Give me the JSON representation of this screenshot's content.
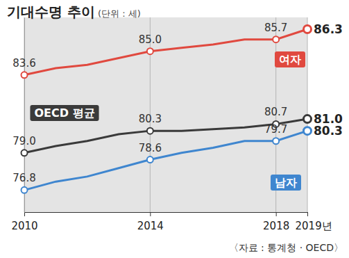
{
  "chart_data": {
    "type": "line",
    "title": "기대수명 추이",
    "subtitle": "(단위 : 세)",
    "source": "〈자료 : 통계청 · OECD〉",
    "x": [
      2010,
      2011,
      2012,
      2013,
      2014,
      2015,
      2016,
      2017,
      2018,
      2019
    ],
    "xlim": [
      2010,
      2019
    ],
    "xticks": [
      2010,
      2014,
      2018,
      {
        "value": 2019,
        "label": "2019년"
      }
    ],
    "ylim": [
      75.5,
      87
    ],
    "yticks": [],
    "tick_labels": "x",
    "grid": true,
    "data_labels": true,
    "marker": "circle",
    "series": [
      {
        "name": "여자",
        "color": "#e0493f",
        "values": [
          83.6,
          84.0,
          84.2,
          84.6,
          85.0,
          85.2,
          85.4,
          85.7,
          85.7,
          86.3
        ],
        "value_labels": [
          "83.6",
          null,
          null,
          null,
          "85.0",
          null,
          null,
          null,
          "85.7",
          "86.3"
        ]
      },
      {
        "name": "OECD 평균",
        "color": "#3a3a3a",
        "values": [
          79.0,
          79.4,
          79.7,
          80.1,
          80.3,
          80.3,
          80.4,
          80.5,
          80.7,
          81.0
        ],
        "value_labels": [
          "79.0",
          null,
          null,
          null,
          "80.3",
          null,
          null,
          null,
          "80.7",
          "81.0"
        ]
      },
      {
        "name": "남자",
        "color": "#3f86cf",
        "values": [
          76.8,
          77.3,
          77.6,
          78.1,
          78.6,
          79.0,
          79.3,
          79.7,
          79.7,
          80.3
        ],
        "value_labels": [
          "76.8",
          null,
          null,
          null,
          "78.6",
          null,
          null,
          null,
          "79.7",
          "80.3"
        ]
      }
    ]
  }
}
